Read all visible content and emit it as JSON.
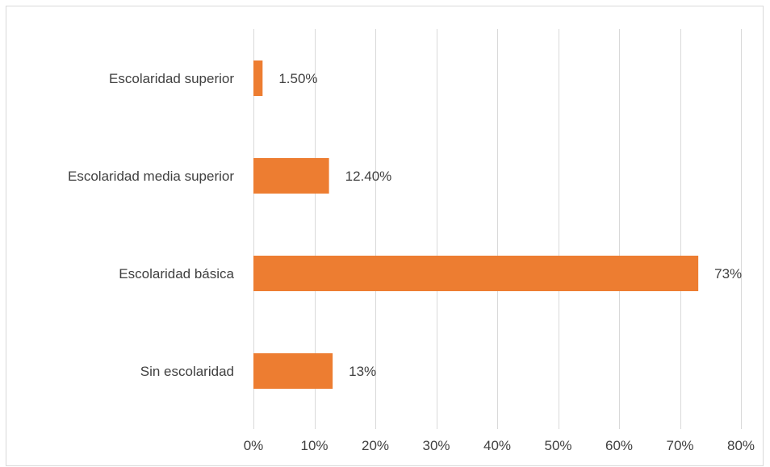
{
  "chart_data": {
    "type": "bar",
    "orientation": "horizontal",
    "categories": [
      "Escolaridad superior",
      "Escolaridad media superior",
      "Escolaridad básica",
      "Sin escolaridad"
    ],
    "values": [
      1.5,
      12.4,
      73,
      13
    ],
    "value_labels": [
      "1.50%",
      "12.40%",
      "73%",
      "13%"
    ],
    "xlim": [
      0,
      80
    ],
    "x_ticks": [
      "0%",
      "10%",
      "20%",
      "30%",
      "40%",
      "50%",
      "60%",
      "70%",
      "80%"
    ],
    "grid": true,
    "bar_color": "#ED7D31",
    "title": "",
    "xlabel": "",
    "ylabel": ""
  }
}
